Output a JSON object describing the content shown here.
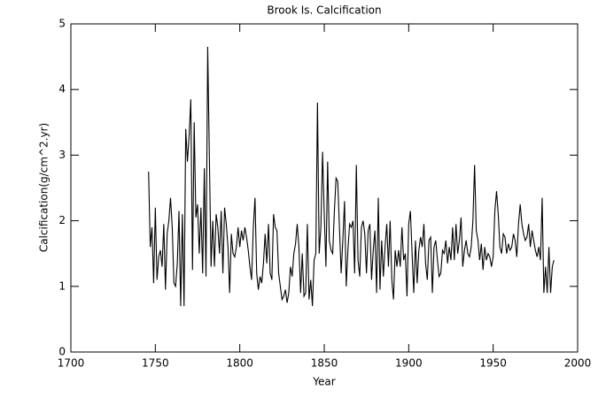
{
  "chart_data": {
    "type": "line",
    "title": "Brook Is. Calcification",
    "x_label": "Year",
    "y_label": "Calcification(g/cm^2.yr)",
    "color": "#000000",
    "xlim": [
      1700,
      2000
    ],
    "xticks": [
      1700,
      1750,
      1800,
      1850,
      1900,
      1950,
      2000
    ],
    "ylim": [
      0,
      5
    ],
    "yticks": [
      0,
      1,
      2,
      3,
      4,
      5
    ],
    "x": [
      1746,
      1747,
      1748,
      1749,
      1750,
      1751,
      1752,
      1753,
      1754,
      1755,
      1756,
      1757,
      1758,
      1759,
      1760,
      1761,
      1762,
      1763,
      1764,
      1765,
      1766,
      1767,
      1768,
      1769,
      1770,
      1771,
      1772,
      1773,
      1774,
      1775,
      1776,
      1777,
      1778,
      1779,
      1780,
      1781,
      1782,
      1783,
      1784,
      1785,
      1786,
      1787,
      1788,
      1789,
      1790,
      1791,
      1792,
      1793,
      1794,
      1795,
      1796,
      1797,
      1798,
      1799,
      1800,
      1801,
      1802,
      1803,
      1804,
      1805,
      1806,
      1807,
      1808,
      1809,
      1810,
      1811,
      1812,
      1813,
      1814,
      1815,
      1816,
      1817,
      1818,
      1819,
      1820,
      1821,
      1822,
      1823,
      1824,
      1825,
      1826,
      1827,
      1828,
      1829,
      1830,
      1831,
      1832,
      1833,
      1834,
      1835,
      1836,
      1837,
      1838,
      1839,
      1840,
      1841,
      1842,
      1843,
      1844,
      1845,
      1846,
      1847,
      1848,
      1849,
      1850,
      1851,
      1852,
      1853,
      1854,
      1855,
      1856,
      1857,
      1858,
      1859,
      1860,
      1861,
      1862,
      1863,
      1864,
      1865,
      1866,
      1867,
      1868,
      1869,
      1870,
      1871,
      1872,
      1873,
      1874,
      1875,
      1876,
      1877,
      1878,
      1879,
      1880,
      1881,
      1882,
      1883,
      1884,
      1885,
      1886,
      1887,
      1888,
      1889,
      1890,
      1891,
      1892,
      1893,
      1894,
      1895,
      1896,
      1897,
      1898,
      1899,
      1900,
      1901,
      1902,
      1903,
      1904,
      1905,
      1906,
      1907,
      1908,
      1909,
      1910,
      1911,
      1912,
      1913,
      1914,
      1915,
      1916,
      1917,
      1918,
      1919,
      1920,
      1921,
      1922,
      1923,
      1924,
      1925,
      1926,
      1927,
      1928,
      1929,
      1930,
      1931,
      1932,
      1933,
      1934,
      1935,
      1936,
      1937,
      1938,
      1939,
      1940,
      1941,
      1942,
      1943,
      1944,
      1945,
      1946,
      1947,
      1948,
      1949,
      1950,
      1951,
      1952,
      1953,
      1954,
      1955,
      1956,
      1957,
      1958,
      1959,
      1960,
      1961,
      1962,
      1963,
      1964,
      1965,
      1966,
      1967,
      1968,
      1969,
      1970,
      1971,
      1972,
      1973,
      1974,
      1975,
      1976,
      1977,
      1978,
      1979,
      1980,
      1981,
      1982,
      1983,
      1984,
      1985,
      1986
    ],
    "values": [
      2.75,
      1.6,
      1.9,
      1.05,
      2.2,
      1.1,
      1.45,
      1.55,
      1.3,
      1.95,
      0.95,
      1.8,
      2.0,
      2.35,
      1.9,
      1.05,
      1.0,
      1.35,
      2.15,
      0.7,
      2.1,
      0.7,
      3.4,
      2.9,
      3.3,
      3.85,
      1.25,
      3.5,
      2.05,
      2.25,
      1.5,
      2.2,
      1.2,
      2.8,
      1.15,
      4.65,
      2.95,
      1.3,
      2.0,
      1.3,
      2.1,
      1.9,
      1.5,
      2.15,
      1.2,
      2.2,
      1.95,
      1.6,
      0.9,
      1.8,
      1.5,
      1.45,
      1.6,
      1.9,
      1.6,
      1.85,
      1.7,
      1.9,
      1.75,
      1.55,
      1.3,
      1.1,
      1.9,
      2.35,
      1.2,
      0.95,
      1.15,
      1.05,
      1.35,
      1.8,
      1.35,
      1.95,
      1.2,
      1.1,
      2.1,
      1.9,
      1.85,
      1.2,
      1.0,
      0.8,
      0.85,
      0.95,
      0.75,
      0.9,
      1.3,
      1.15,
      1.5,
      1.65,
      1.95,
      1.6,
      0.9,
      1.5,
      0.85,
      0.9,
      1.95,
      0.8,
      1.1,
      0.7,
      1.4,
      1.5,
      3.8,
      1.5,
      1.9,
      3.05,
      2.1,
      1.3,
      2.9,
      1.7,
      1.55,
      1.5,
      2.15,
      2.65,
      2.6,
      1.9,
      1.2,
      1.7,
      2.3,
      1.0,
      1.55,
      1.95,
      1.9,
      2.0,
      1.2,
      2.85,
      1.4,
      1.15,
      1.9,
      2.0,
      1.8,
      1.2,
      1.85,
      1.95,
      1.1,
      1.55,
      1.85,
      0.9,
      2.35,
      0.95,
      1.7,
      1.15,
      1.6,
      1.95,
      1.3,
      2.0,
      1.1,
      0.8,
      1.55,
      1.3,
      1.55,
      1.3,
      1.9,
      1.4,
      1.5,
      0.85,
      1.95,
      2.15,
      1.5,
      0.9,
      1.7,
      1.05,
      1.55,
      1.75,
      1.6,
      1.95,
      1.35,
      1.1,
      1.7,
      1.75,
      0.9,
      1.6,
      1.7,
      1.4,
      1.15,
      1.2,
      1.55,
      1.5,
      1.7,
      1.35,
      1.6,
      1.4,
      1.9,
      1.4,
      1.95,
      1.5,
      1.7,
      2.05,
      1.3,
      1.55,
      1.7,
      1.5,
      1.45,
      1.6,
      2.0,
      2.85,
      1.85,
      1.7,
      1.4,
      1.65,
      1.25,
      1.6,
      1.4,
      1.5,
      1.45,
      1.3,
      1.45,
      2.15,
      2.45,
      2.1,
      1.6,
      1.5,
      1.8,
      1.75,
      1.5,
      1.65,
      1.55,
      1.6,
      1.8,
      1.7,
      1.45,
      1.95,
      2.25,
      1.95,
      1.8,
      1.7,
      1.75,
      1.95,
      1.6,
      1.85,
      1.7,
      1.55,
      1.45,
      1.6,
      1.4,
      2.35,
      0.9,
      1.3,
      0.9,
      1.6,
      0.9,
      1.3,
      1.4
    ]
  }
}
